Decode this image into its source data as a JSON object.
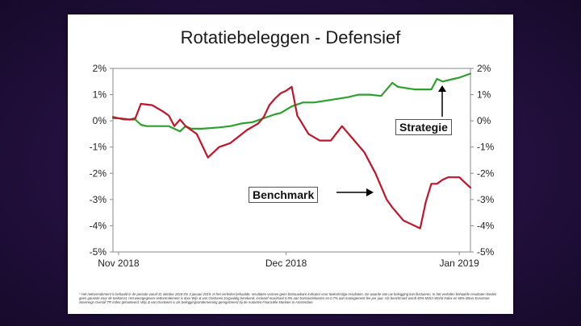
{
  "chart_data": {
    "type": "line",
    "title": "Rotatiebeleggen - Defensief",
    "x_tick_labels": [
      "Nov 2018",
      "Dec 2018",
      "Jan 2019"
    ],
    "x_tick_dates": [
      "2018-11-01",
      "2018-12-01",
      "2019-01-01"
    ],
    "xlim": [
      "2018-10-31",
      "2019-01-03"
    ],
    "y_tick_labels_left": [
      "2%",
      "1%",
      "0%",
      "-1%",
      "-2%",
      "-3%",
      "-4%",
      "-5%"
    ],
    "y_tick_labels_right": [
      "2%",
      "1%",
      "0%",
      "-1%",
      "-2%",
      "-3%",
      "-4%",
      "-5%"
    ],
    "y_ticks": [
      2,
      1,
      0,
      -1,
      -2,
      -3,
      -4,
      -5
    ],
    "ylim": [
      -5,
      2
    ],
    "grid": false,
    "series": [
      {
        "name": "Strategie",
        "color": "#2ca02c",
        "x": [
          "2018-10-31",
          "2018-11-01",
          "2018-11-02",
          "2018-11-04",
          "2018-11-05",
          "2018-11-06",
          "2018-11-08",
          "2018-11-10",
          "2018-11-12",
          "2018-11-13",
          "2018-11-14",
          "2018-11-15",
          "2018-11-16",
          "2018-11-19",
          "2018-11-21",
          "2018-11-23",
          "2018-11-25",
          "2018-11-27",
          "2018-11-29",
          "2018-11-30",
          "2018-12-02",
          "2018-12-04",
          "2018-12-06",
          "2018-12-09",
          "2018-12-12",
          "2018-12-14",
          "2018-12-16",
          "2018-12-18",
          "2018-12-20",
          "2018-12-21",
          "2018-12-24",
          "2018-12-26",
          "2018-12-27",
          "2018-12-28",
          "2018-12-29",
          "2018-12-31",
          "2019-01-01",
          "2019-01-03"
        ],
        "values": [
          0.1,
          0.1,
          0.05,
          0.05,
          -0.15,
          -0.2,
          -0.2,
          -0.2,
          -0.4,
          -0.2,
          -0.3,
          -0.3,
          -0.3,
          -0.25,
          -0.2,
          -0.1,
          -0.05,
          0.1,
          0.25,
          0.3,
          0.55,
          0.7,
          0.7,
          0.8,
          0.9,
          1.0,
          1.0,
          0.95,
          1.45,
          1.3,
          1.2,
          1.2,
          1.2,
          1.6,
          1.5,
          1.6,
          1.65,
          1.8
        ]
      },
      {
        "name": "Benchmark",
        "color": "#c0152a",
        "x": [
          "2018-10-31",
          "2018-11-01",
          "2018-11-03",
          "2018-11-04",
          "2018-11-05",
          "2018-11-07",
          "2018-11-09",
          "2018-11-10",
          "2018-11-11",
          "2018-11-12",
          "2018-11-13",
          "2018-11-15",
          "2018-11-17",
          "2018-11-19",
          "2018-11-21",
          "2018-11-24",
          "2018-11-26",
          "2018-11-27",
          "2018-11-28",
          "2018-11-29",
          "2018-11-30",
          "2018-12-01",
          "2018-12-02",
          "2018-12-03",
          "2018-12-05",
          "2018-12-07",
          "2018-12-09",
          "2018-12-11",
          "2018-12-13",
          "2018-12-15",
          "2018-12-17",
          "2018-12-19",
          "2018-12-20",
          "2018-12-22",
          "2018-12-25",
          "2018-12-26",
          "2018-12-27",
          "2018-12-28",
          "2018-12-29",
          "2018-12-30",
          "2019-01-01",
          "2019-01-02",
          "2019-01-03"
        ],
        "values": [
          0.15,
          0.1,
          0.05,
          0.1,
          0.65,
          0.6,
          0.35,
          0.2,
          -0.2,
          0.05,
          -0.2,
          -0.5,
          -1.4,
          -1.0,
          -0.85,
          -0.35,
          -0.1,
          0.15,
          0.6,
          0.85,
          1.05,
          1.15,
          1.3,
          0.2,
          -0.5,
          -0.75,
          -0.75,
          -0.2,
          -0.7,
          -1.2,
          -2.0,
          -3.0,
          -3.3,
          -3.8,
          -4.1,
          -3.1,
          -2.4,
          -2.4,
          -2.25,
          -2.15,
          -2.15,
          -2.35,
          -2.55
        ]
      }
    ],
    "annotations": [
      "Strategie",
      "Benchmark"
    ]
  },
  "footnote": "* Het nettorendement is behaald in de periode vanaf 31 oktober 2018 t/m 3 januari 2019. In het verleden behaalde, resultaten vormen geen betrouwbare indicator voor toekomstige resultaten. De waarde van uw belegging kan fluctueren. In het verleden behaalde resultaten bieden geen garantie voor de toekomst. Het weergegeven nettorendement is door Wijs & van Oostveen zorgvuldig berekend, inclusief maximaal 0,5% aan transactiekosten en 0,7% aan management fee per jaar. Als benchmark wordt 40% MSCI World Index en 60% iBoxx Eurozone Sovereign Overall TR Index gehanteerd. Wijs & van Oostveen is als beleggingsonderneming geregistreerd bij de Autoriteit Financiële Markten in Amsterdam."
}
